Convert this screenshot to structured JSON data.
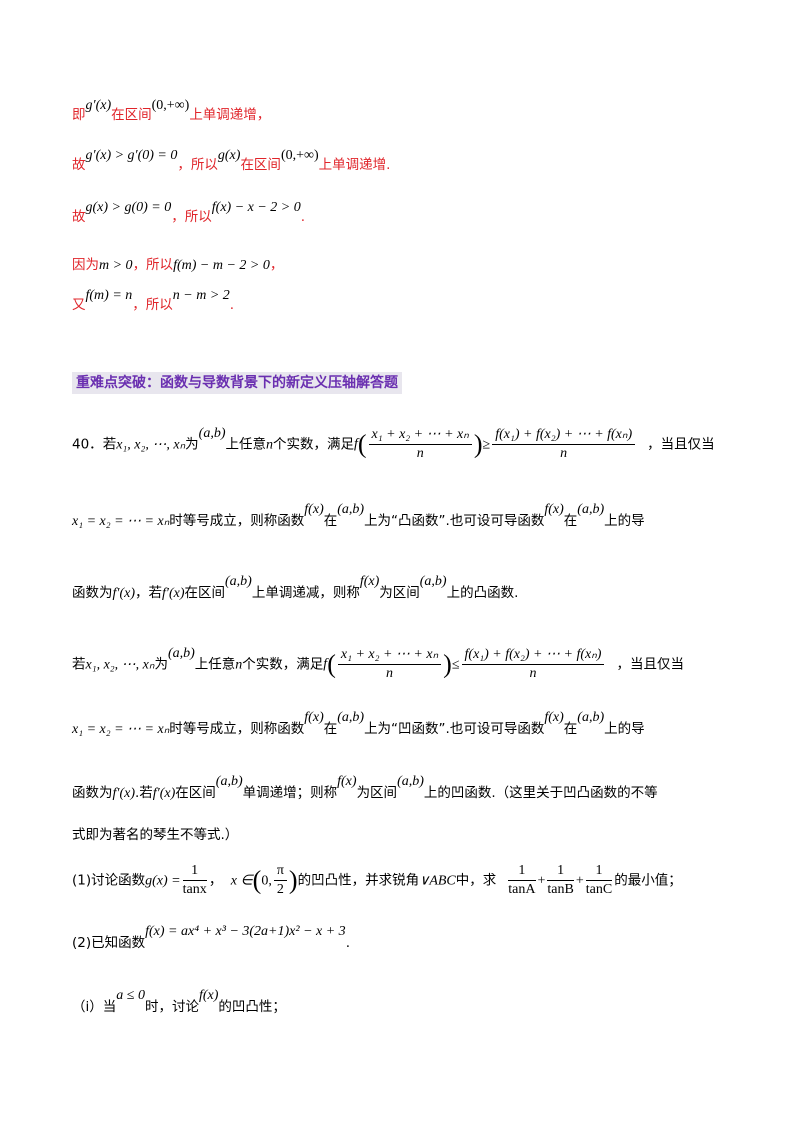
{
  "red_block": {
    "l1": {
      "t1": "即",
      "m1": "g′(x)",
      "t2": "在区间",
      "m2": "(0,+∞)",
      "t3": "上单调递增，"
    },
    "l2": {
      "t1": "故",
      "m1": "g′(x) > g′(0) = 0",
      "t2": "，所以",
      "m2": "g(x)",
      "t3": "在区间",
      "m3": "(0,+∞)",
      "t4": "上单调递增."
    },
    "l3": {
      "t1": "故",
      "m1": "g(x) > g(0) = 0",
      "t2": "，所以",
      "m2": "f(x) − x − 2 > 0",
      "t3": "."
    },
    "l4": {
      "t1": "因为",
      "m1": "m > 0",
      "t2": "，所以",
      "m2": "f(m) − m − 2 > 0",
      "t3": "，"
    },
    "l5": {
      "t1": "又",
      "m1": "f(m) = n",
      "t2": "，所以",
      "m2": "n − m > 2",
      "t3": "."
    }
  },
  "section_heading": "重难点突破：函数与导数背景下的新定义压轴解答题",
  "problem": {
    "p1": {
      "num": "40．",
      "t1": "若",
      "m1": "x₁, x₂, ⋯, xₙ",
      "t2": "为",
      "m2": "(a,b)",
      "t3": "上任意",
      "m3": "n",
      "t4": "个实数，满足",
      "fnum": "x₁ + x₂ + ⋯ + xₙ",
      "fden": "n",
      "rel": "≥",
      "rnum": "f(x₁) + f(x₂) + ⋯ + f(xₙ)",
      "rden": "n",
      "t5": "，当且仅当"
    },
    "p2": {
      "m1": "x₁ = x₂ = ⋯ = xₙ",
      "t1": "时等号成立，则称函数",
      "m2": "f(x)",
      "t2": "在",
      "m3": "(a,b)",
      "t3": "上为“凸函数”.也可设可导函数",
      "m4": "f(x)",
      "t4": "在",
      "m5": "(a,b)",
      "t5": "上的导"
    },
    "p3": {
      "t1": "函数为",
      "m1": "f′(x)",
      "t2": "，若",
      "m2": "f′(x)",
      "t3": "在区间",
      "m3": "(a,b)",
      "t4": "上单调递减，则称",
      "m4": "f(x)",
      "t5": "为区间",
      "m5": "(a,b)",
      "t6": "上的凸函数."
    },
    "p4": {
      "t1": "若",
      "m1": "x₁, x₂, ⋯, xₙ",
      "t2": "为",
      "m2": "(a,b)",
      "t3": "上任意",
      "m3": "n",
      "t4": "个实数，满足",
      "fnum": "x₁ + x₂ + ⋯ + xₙ",
      "fden": "n",
      "rel": "≤",
      "rnum": "f(x₁) + f(x₂) + ⋯ + f(xₙ)",
      "rden": "n",
      "t5": "，当且仅当"
    },
    "p5": {
      "m1": "x₁ = x₂ = ⋯ = xₙ",
      "t1": "时等号成立，则称函数",
      "m2": "f(x)",
      "t2": "在",
      "m3": "(a,b)",
      "t3": "上为“凹函数”.也可设可导函数",
      "m4": "f(x)",
      "t4": "在",
      "m5": "(a,b)",
      "t5": "上的导"
    },
    "p6": {
      "t1": "函数为",
      "m1": "f′(x)",
      "t2": ".若",
      "m2": "f′(x)",
      "t3": "在区间",
      "m3": "(a,b)",
      "t4": "单调递增；则称",
      "m4": "f(x)",
      "t5": "为区间",
      "m5": "(a,b)",
      "t6": "上的凹函数.（这里关于凹凸函数的不等"
    },
    "p7": {
      "t1": "式即为著名的琴生不等式.）"
    },
    "q1": {
      "t1": "(1)讨论函数",
      "m1": "g(x) =",
      "f1n": "1",
      "f1d": "tanx",
      "t2": "，",
      "m2": "x ∈",
      "intn": "π",
      "intd": "2",
      "int_left": "0,",
      "t3": "的凹凸性，并求锐角",
      "m3": "∨ABC",
      "t4": "中，求",
      "a_n": "1",
      "a_d": "tanA",
      "b_n": "1",
      "b_d": "tanB",
      "c_n": "1",
      "c_d": "tanC",
      "plus": "+",
      "t5": "的最小值；"
    },
    "q2": {
      "t1": "(2)已知函数",
      "m1": "f(x) = ax⁴ + x³ − 3(2a+1)x² − x + 3",
      "t2": "."
    },
    "q2i": {
      "t1": "（ⅰ）当",
      "m1": "a ≤ 0",
      "t2": "时，讨论",
      "m2": "f(x)",
      "t3": "的凹凸性；"
    }
  }
}
